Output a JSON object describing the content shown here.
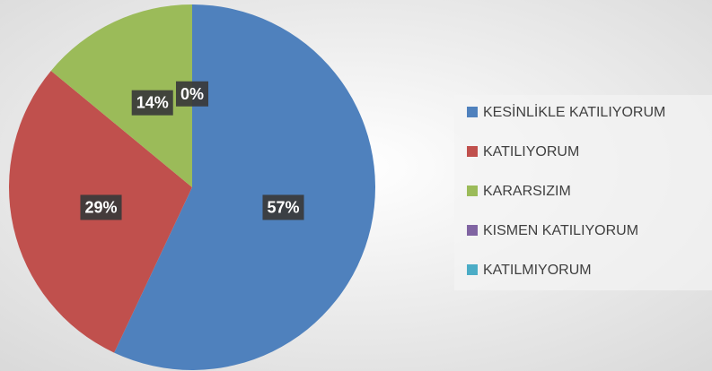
{
  "chart_data": {
    "type": "pie",
    "categories": [
      "KESİNLİKLE KATILIYORUM",
      "KATILIYORUM",
      "KARARSIZIM",
      "KISMEN KATILIYORUM",
      "KATILMIYORUM"
    ],
    "values": [
      57,
      29,
      14,
      0,
      0
    ],
    "value_labels": [
      "57%",
      "29%",
      "14%",
      "0%",
      null
    ],
    "colors": [
      "#4f81bd",
      "#c0504d",
      "#9bbb59",
      "#8064a2",
      "#4bacc6"
    ],
    "legend": "right"
  }
}
